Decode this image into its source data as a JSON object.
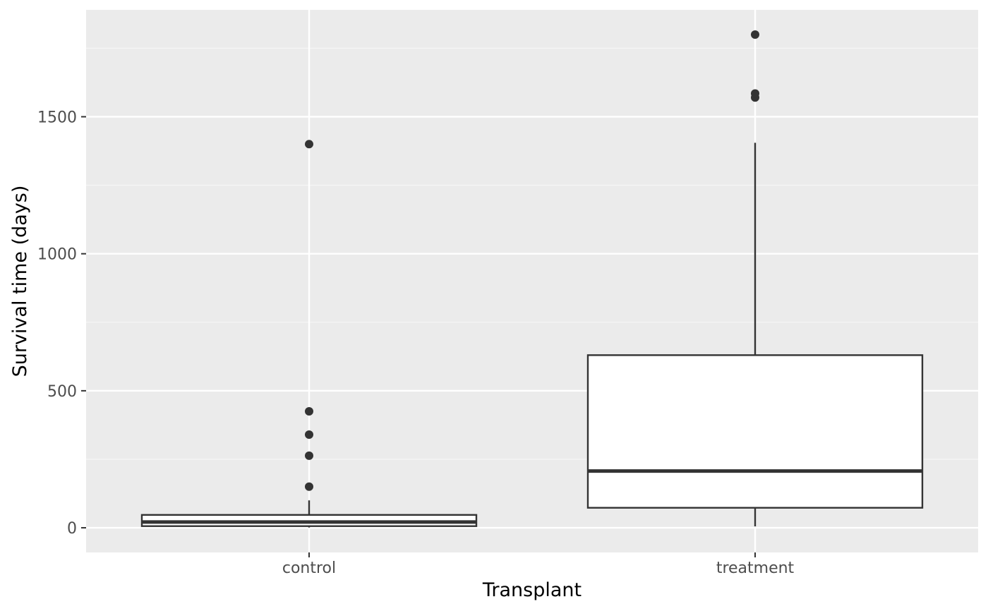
{
  "chart_data": {
    "type": "boxplot",
    "title": "",
    "xlabel": "Transplant",
    "ylabel": "Survival time (days)",
    "categories": [
      "control",
      "treatment"
    ],
    "ylim": [
      -90,
      1890
    ],
    "y_ticks": [
      0,
      500,
      1000,
      1500
    ],
    "y_tick_labels": [
      "0",
      "500",
      "1000",
      "1500"
    ],
    "grid": true,
    "legend": "none",
    "boxes": [
      {
        "category": "control",
        "whisker_low": 1,
        "q1": 6,
        "median": 21,
        "q3": 47,
        "whisker_high": 100,
        "outliers": [
          150,
          263,
          340,
          425,
          1400
        ]
      },
      {
        "category": "treatment",
        "whisker_low": 5,
        "q1": 73,
        "median": 207,
        "q3": 630,
        "whisker_high": 1405,
        "outliers": [
          1570,
          1585,
          1800
        ]
      }
    ],
    "colors": {
      "panel_background": "#ebebeb",
      "grid_major": "#ffffff",
      "grid_minor": "#f5f5f5",
      "box_fill": "#ffffff",
      "box_line": "#333333",
      "outlier": "#333333"
    }
  }
}
